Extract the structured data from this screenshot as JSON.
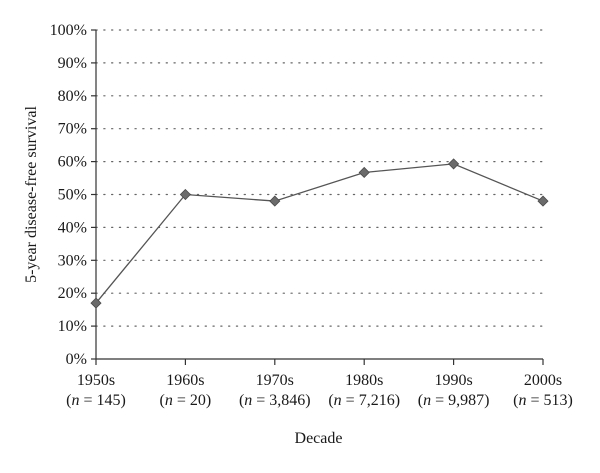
{
  "chart_data": {
    "type": "line",
    "title": "",
    "xlabel": "Decade",
    "ylabel": "5-year disease-free survival",
    "categories": [
      "1950s",
      "1960s",
      "1970s",
      "1980s",
      "1990s",
      "2000s"
    ],
    "category_notes": [
      "(n = 145)",
      "(n = 20)",
      "(n = 3,846)",
      "(n = 7,216)",
      "(n = 9,987)",
      "(n = 513)"
    ],
    "series": [
      {
        "values": [
          17,
          50,
          48,
          56.7,
          59.3,
          48
        ]
      }
    ],
    "ylim": [
      0,
      100
    ],
    "y_ticks": [
      "0%",
      "10%",
      "20%",
      "30%",
      "40%",
      "50%",
      "60%",
      "70%",
      "80%",
      "90%",
      "100%"
    ],
    "grid": "horizontal dotted",
    "legend": "none",
    "colors": {
      "line": "#555555",
      "marker": "#6b6b6b",
      "axis": "#333333",
      "grid": "#666666"
    },
    "marker": "diamond-icon"
  }
}
